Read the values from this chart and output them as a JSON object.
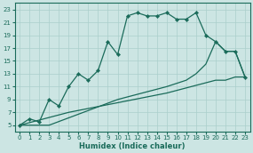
{
  "xlabel": "Humidex (Indice chaleur)",
  "bg_color": "#cce5e3",
  "line_color": "#1a6b5a",
  "grid_color": "#aacfcc",
  "xlim": [
    -0.5,
    23.5
  ],
  "ylim": [
    4,
    24
  ],
  "xticks": [
    0,
    1,
    2,
    3,
    4,
    5,
    6,
    7,
    8,
    9,
    10,
    11,
    12,
    13,
    14,
    15,
    16,
    17,
    18,
    19,
    20,
    21,
    22,
    23
  ],
  "yticks": [
    5,
    7,
    9,
    11,
    13,
    15,
    17,
    19,
    21,
    23
  ],
  "line1_x": [
    0,
    1,
    2,
    3,
    4,
    5,
    6,
    7,
    8,
    9,
    10,
    11,
    12,
    13,
    14,
    15,
    16,
    17,
    18,
    19,
    20,
    21,
    22,
    23
  ],
  "line1_y": [
    5,
    6,
    5.5,
    9,
    8,
    11,
    13,
    12,
    13.5,
    18,
    16,
    22,
    22.5,
    22,
    22,
    22.5,
    21.5,
    21.5,
    22.5,
    19,
    18,
    16.5,
    16.5,
    12.5
  ],
  "line2_x": [
    0,
    3,
    10,
    15,
    17,
    18,
    19,
    20,
    21,
    22,
    23
  ],
  "line2_y": [
    5,
    5,
    9,
    11,
    12,
    13,
    14.5,
    18,
    16.5,
    16.5,
    12.5
  ],
  "line3_x": [
    0,
    5,
    10,
    15,
    20,
    21,
    22,
    23
  ],
  "line3_y": [
    5,
    7,
    8.5,
    10,
    12,
    12,
    12.5,
    12.5
  ]
}
